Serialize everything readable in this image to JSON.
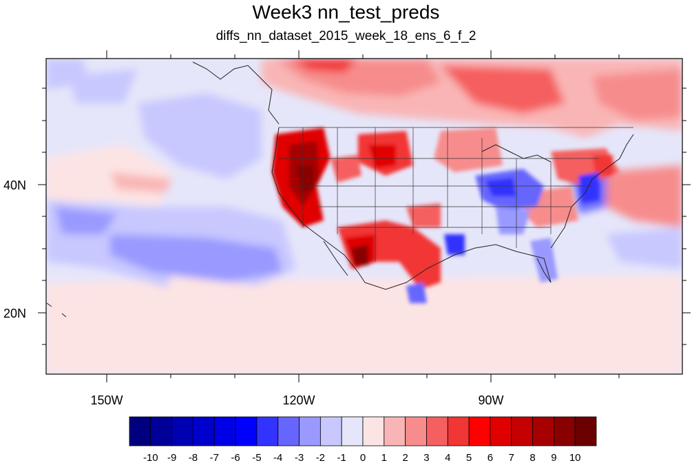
{
  "title": "Week3 nn_test_preds",
  "subtitle": "diffs_nn_dataset_2015_week_18_ens_6_f_2",
  "axes": {
    "lon_labels": [
      "150W",
      "120W",
      "90W"
    ],
    "lat_labels": [
      "40N",
      "20N"
    ]
  },
  "colorbar": {
    "labels": [
      "-10",
      "-9",
      "-8",
      "-7",
      "-6",
      "-5",
      "-4",
      "-3",
      "-2",
      "-1",
      "0",
      "1",
      "2",
      "3",
      "4",
      "5",
      "6",
      "7",
      "8",
      "9",
      "10"
    ],
    "colors": [
      "#00007f",
      "#000099",
      "#0000b3",
      "#0000cc",
      "#0000e6",
      "#0000ff",
      "#3333ff",
      "#6666ff",
      "#9999ff",
      "#c8c8ff",
      "#e6e6fa",
      "#fde4e4",
      "#f9b5b5",
      "#f78c8c",
      "#f55f5f",
      "#f23636",
      "#ff0000",
      "#e00000",
      "#c40000",
      "#a60000",
      "#880000",
      "#6a0000"
    ]
  },
  "colors": {
    "ocean_background": "#e6e6fa",
    "warm_light": "#fde4e4",
    "warm_mid": "#f78c8c",
    "warm_strong": "#e00000",
    "warm_max": "#880000",
    "cool_light": "#c8c8ff",
    "cool_mid": "#6666ff",
    "cool_strong": "#0000e6"
  }
}
